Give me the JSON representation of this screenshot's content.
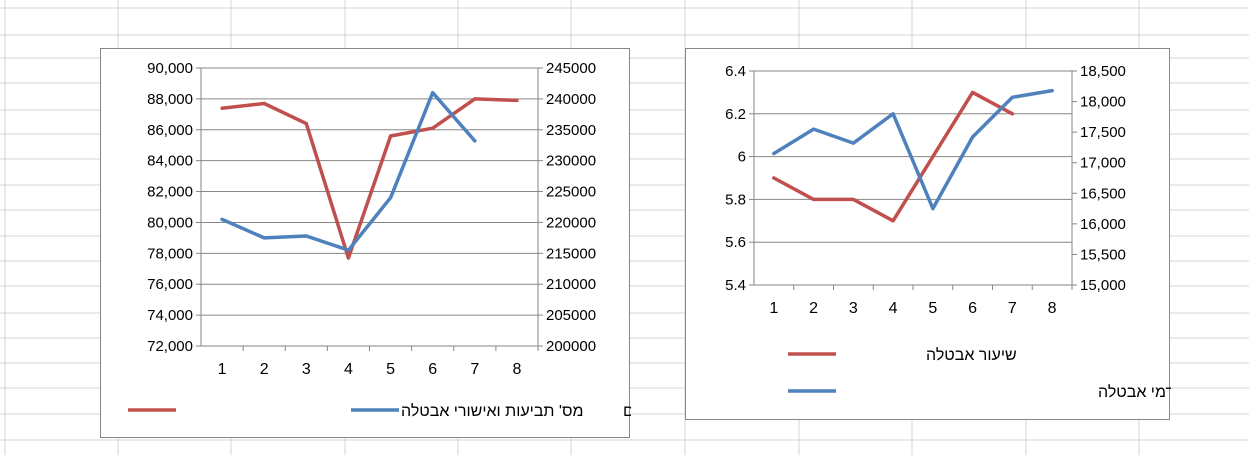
{
  "sheet": {
    "grid_color": "#d4d4d4"
  },
  "chart_data": [
    {
      "type": "line",
      "title": "",
      "categories": [
        "1",
        "2",
        "3",
        "4",
        "5",
        "6",
        "7",
        "8"
      ],
      "y_left": {
        "lim": [
          72000,
          90000
        ],
        "ticks": [
          "72,000",
          "74,000",
          "76,000",
          "78,000",
          "80,000",
          "82,000",
          "84,000",
          "86,000",
          "88,000",
          "90,000"
        ]
      },
      "y_right": {
        "lim": [
          200000,
          245000
        ],
        "ticks": [
          "200000",
          "205000",
          "210000",
          "215000",
          "220000",
          "225000",
          "230000",
          "235000",
          "240000",
          "245000"
        ]
      },
      "grid": true,
      "legend_position": "bottom",
      "series": [
        {
          "name": "מס' תביעות ואישורי אבטלה",
          "axis": "left",
          "color": "#c0504d",
          "values": [
            87400,
            87700,
            86400,
            77700,
            85600,
            86100,
            88000,
            87900
          ]
        },
        {
          "name": "מס' בלתי מועסקים",
          "axis": "right",
          "color": "#4f81bd",
          "values": [
            220500,
            217500,
            217800,
            215500,
            224000,
            241000,
            233200,
            null
          ]
        }
      ]
    },
    {
      "type": "line",
      "title": "",
      "categories": [
        "1",
        "2",
        "3",
        "4",
        "5",
        "6",
        "7",
        "8"
      ],
      "y_left": {
        "lim": [
          5.4,
          6.4
        ],
        "ticks": [
          "5.4",
          "5.6",
          "5.8",
          "6",
          "6.2",
          "6.4"
        ]
      },
      "y_right": {
        "lim": [
          15000,
          18500
        ],
        "ticks": [
          "15,000",
          "15,500",
          "16,000",
          "16,500",
          "17,000",
          "17,500",
          "18,000",
          "18,500"
        ]
      },
      "grid": true,
      "legend_position": "bottom",
      "series": [
        {
          "name": "שיעור אבטלה",
          "axis": "left",
          "color": "#c0504d",
          "values": [
            5.9,
            5.8,
            5.8,
            5.7,
            6.0,
            6.3,
            6.2,
            null
          ]
        },
        {
          "name": "תביעות חדשות לדמי אבטלה",
          "axis": "right",
          "color": "#4f81bd",
          "values": [
            17150,
            17550,
            17320,
            17800,
            16250,
            17420,
            18070,
            18180
          ]
        }
      ]
    }
  ]
}
